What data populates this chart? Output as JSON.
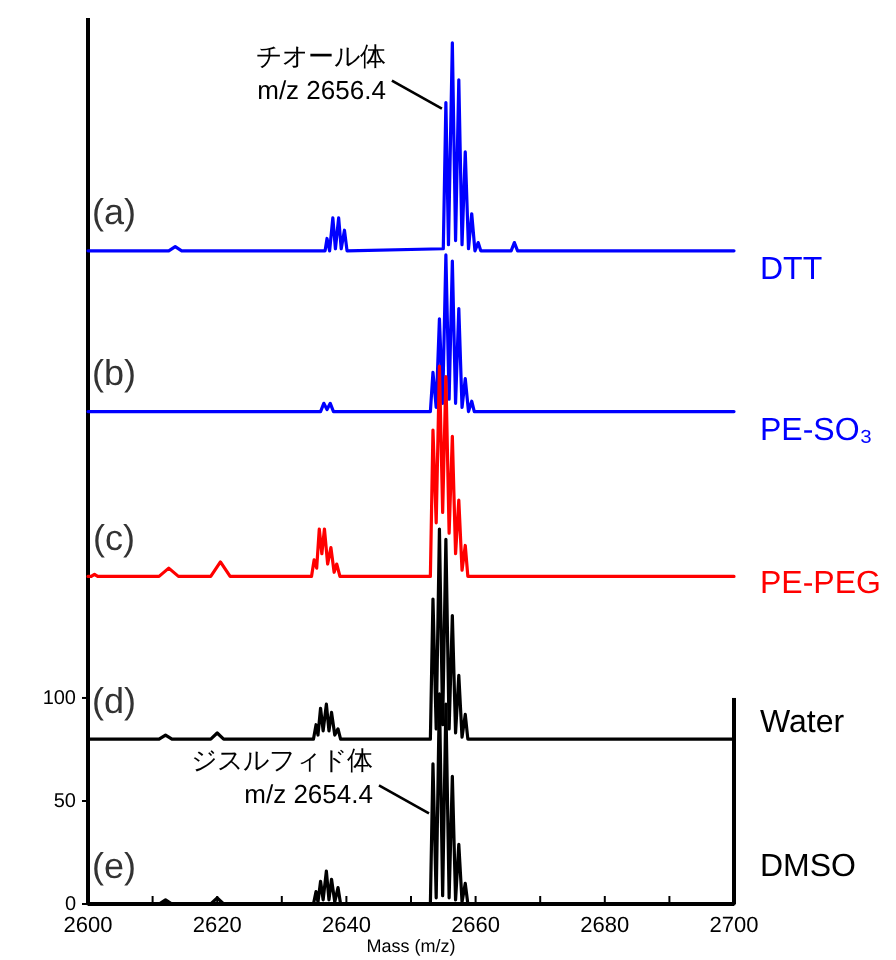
{
  "chart_data": {
    "type": "line",
    "xlabel": "Mass (m/z)",
    "xlim": [
      2600,
      2700
    ],
    "xticks": [
      2600,
      {
        "value": 2610,
        "label": null
      },
      2620,
      {
        "value": 2630,
        "label": null
      },
      2640,
      {
        "value": 2650,
        "label": null
      },
      2660,
      {
        "value": 2670,
        "label": null
      },
      2680,
      {
        "value": 2690,
        "label": null
      },
      2700
    ],
    "ylim": [
      0,
      430
    ],
    "yticks": [
      0,
      50,
      100
    ],
    "series": [
      {
        "name": "DTT",
        "color": "#0000ff",
        "x": [
          2600,
          2612.5,
          2613.5,
          2614.5,
          2636.7,
          2637.0,
          2637.4,
          2637.9,
          2638.3,
          2638.8,
          2639.2,
          2639.7,
          2640.1,
          2655.0,
          2655.4,
          2655.8,
          2656.4,
          2656.9,
          2657.4,
          2657.9,
          2658.4,
          2658.9,
          2659.4,
          2659.9,
          2660.4,
          2660.8,
          2665.5,
          2666.0,
          2666.5,
          2700
        ],
        "values": [
          317,
          317,
          319,
          317,
          317,
          323,
          317,
          333,
          318,
          333,
          318,
          327,
          317,
          318,
          389,
          320,
          418,
          322,
          400,
          320,
          365,
          318,
          335,
          317,
          321,
          317,
          317,
          321,
          317,
          317
        ]
      },
      {
        "name": "PE-SO₃",
        "color": "#0000ff",
        "x": [
          2600,
          2636.0,
          2636.5,
          2637.0,
          2637.5,
          2638.0,
          2653.0,
          2653.4,
          2653.9,
          2654.4,
          2654.9,
          2655.4,
          2655.9,
          2656.4,
          2656.9,
          2657.4,
          2657.9,
          2658.4,
          2658.9,
          2659.4,
          2659.8,
          2700
        ],
        "values": [
          239,
          239,
          243,
          240,
          243,
          239,
          239,
          258,
          241,
          284,
          243,
          315,
          245,
          312,
          243,
          289,
          241,
          255,
          239,
          244,
          239,
          239
        ]
      },
      {
        "name": "PE-PEG",
        "color": "#ff0000",
        "x": [
          2600,
          2600.5,
          2601.0,
          2601.5,
          2611.0,
          2612.5,
          2614.0,
          2619.0,
          2620.5,
          2622.0,
          2634.6,
          2635.0,
          2635.4,
          2635.8,
          2636.2,
          2636.6,
          2637.1,
          2637.6,
          2638.1,
          2638.5,
          2639.0,
          2653.0,
          2653.4,
          2653.9,
          2654.4,
          2654.9,
          2655.4,
          2655.9,
          2656.4,
          2656.9,
          2657.4,
          2657.9,
          2658.4,
          2658.8,
          2700
        ],
        "values": [
          159,
          159,
          160,
          159,
          159,
          163,
          159,
          159,
          166,
          159,
          159,
          167,
          163,
          182,
          170,
          182,
          165,
          173,
          161,
          165,
          159,
          159,
          230,
          185,
          261,
          190,
          256,
          180,
          227,
          170,
          196,
          162,
          174,
          159,
          159
        ]
      },
      {
        "name": "Water",
        "color": "#000000",
        "x": [
          2600,
          2611.0,
          2612.0,
          2613.0,
          2619.0,
          2620.0,
          2621.0,
          2634.9,
          2635.3,
          2635.6,
          2636.0,
          2636.4,
          2636.9,
          2637.3,
          2637.7,
          2638.2,
          2638.7,
          2639.1,
          2653.0,
          2653.4,
          2653.9,
          2654.4,
          2654.9,
          2655.4,
          2655.9,
          2656.4,
          2656.9,
          2657.4,
          2657.9,
          2658.4,
          2658.8,
          2700
        ],
        "values": [
          80,
          80,
          82,
          80,
          80,
          83,
          80,
          80,
          87,
          82,
          95,
          84,
          97,
          84,
          93,
          82,
          85,
          80,
          80,
          148,
          85,
          182,
          87,
          177,
          85,
          140,
          83,
          111,
          81,
          92,
          80,
          80
        ]
      },
      {
        "name": "DMSO",
        "color": "#000000",
        "x": [
          2600,
          2611.0,
          2612.0,
          2613.0,
          2619.0,
          2620.0,
          2621.0,
          2634.9,
          2635.3,
          2635.6,
          2636.0,
          2636.4,
          2636.9,
          2637.3,
          2637.7,
          2638.2,
          2638.7,
          2639.1,
          2653.0,
          2653.4,
          2653.9,
          2654.4,
          2654.9,
          2655.4,
          2655.9,
          2656.4,
          2656.9,
          2657.4,
          2657.9,
          2658.4,
          2658.8,
          2700
        ],
        "values": [
          0,
          0,
          2,
          0,
          0,
          3,
          0,
          0,
          6,
          1,
          11,
          2,
          16,
          2,
          12,
          1,
          8,
          0,
          0,
          68,
          3,
          102,
          4,
          97,
          3,
          62,
          2,
          29,
          1,
          10,
          0,
          0
        ]
      }
    ],
    "annotations": [
      "(a)",
      "(b)",
      "(c)",
      "(d)",
      "(e)",
      {
        "text": "チオール体\nm/z 2656.4",
        "x": 2655.4,
        "y": 386
      },
      {
        "text": "ジスルフィド体\nm/z 2654.4",
        "x": 2653.4,
        "y": 44
      }
    ]
  }
}
